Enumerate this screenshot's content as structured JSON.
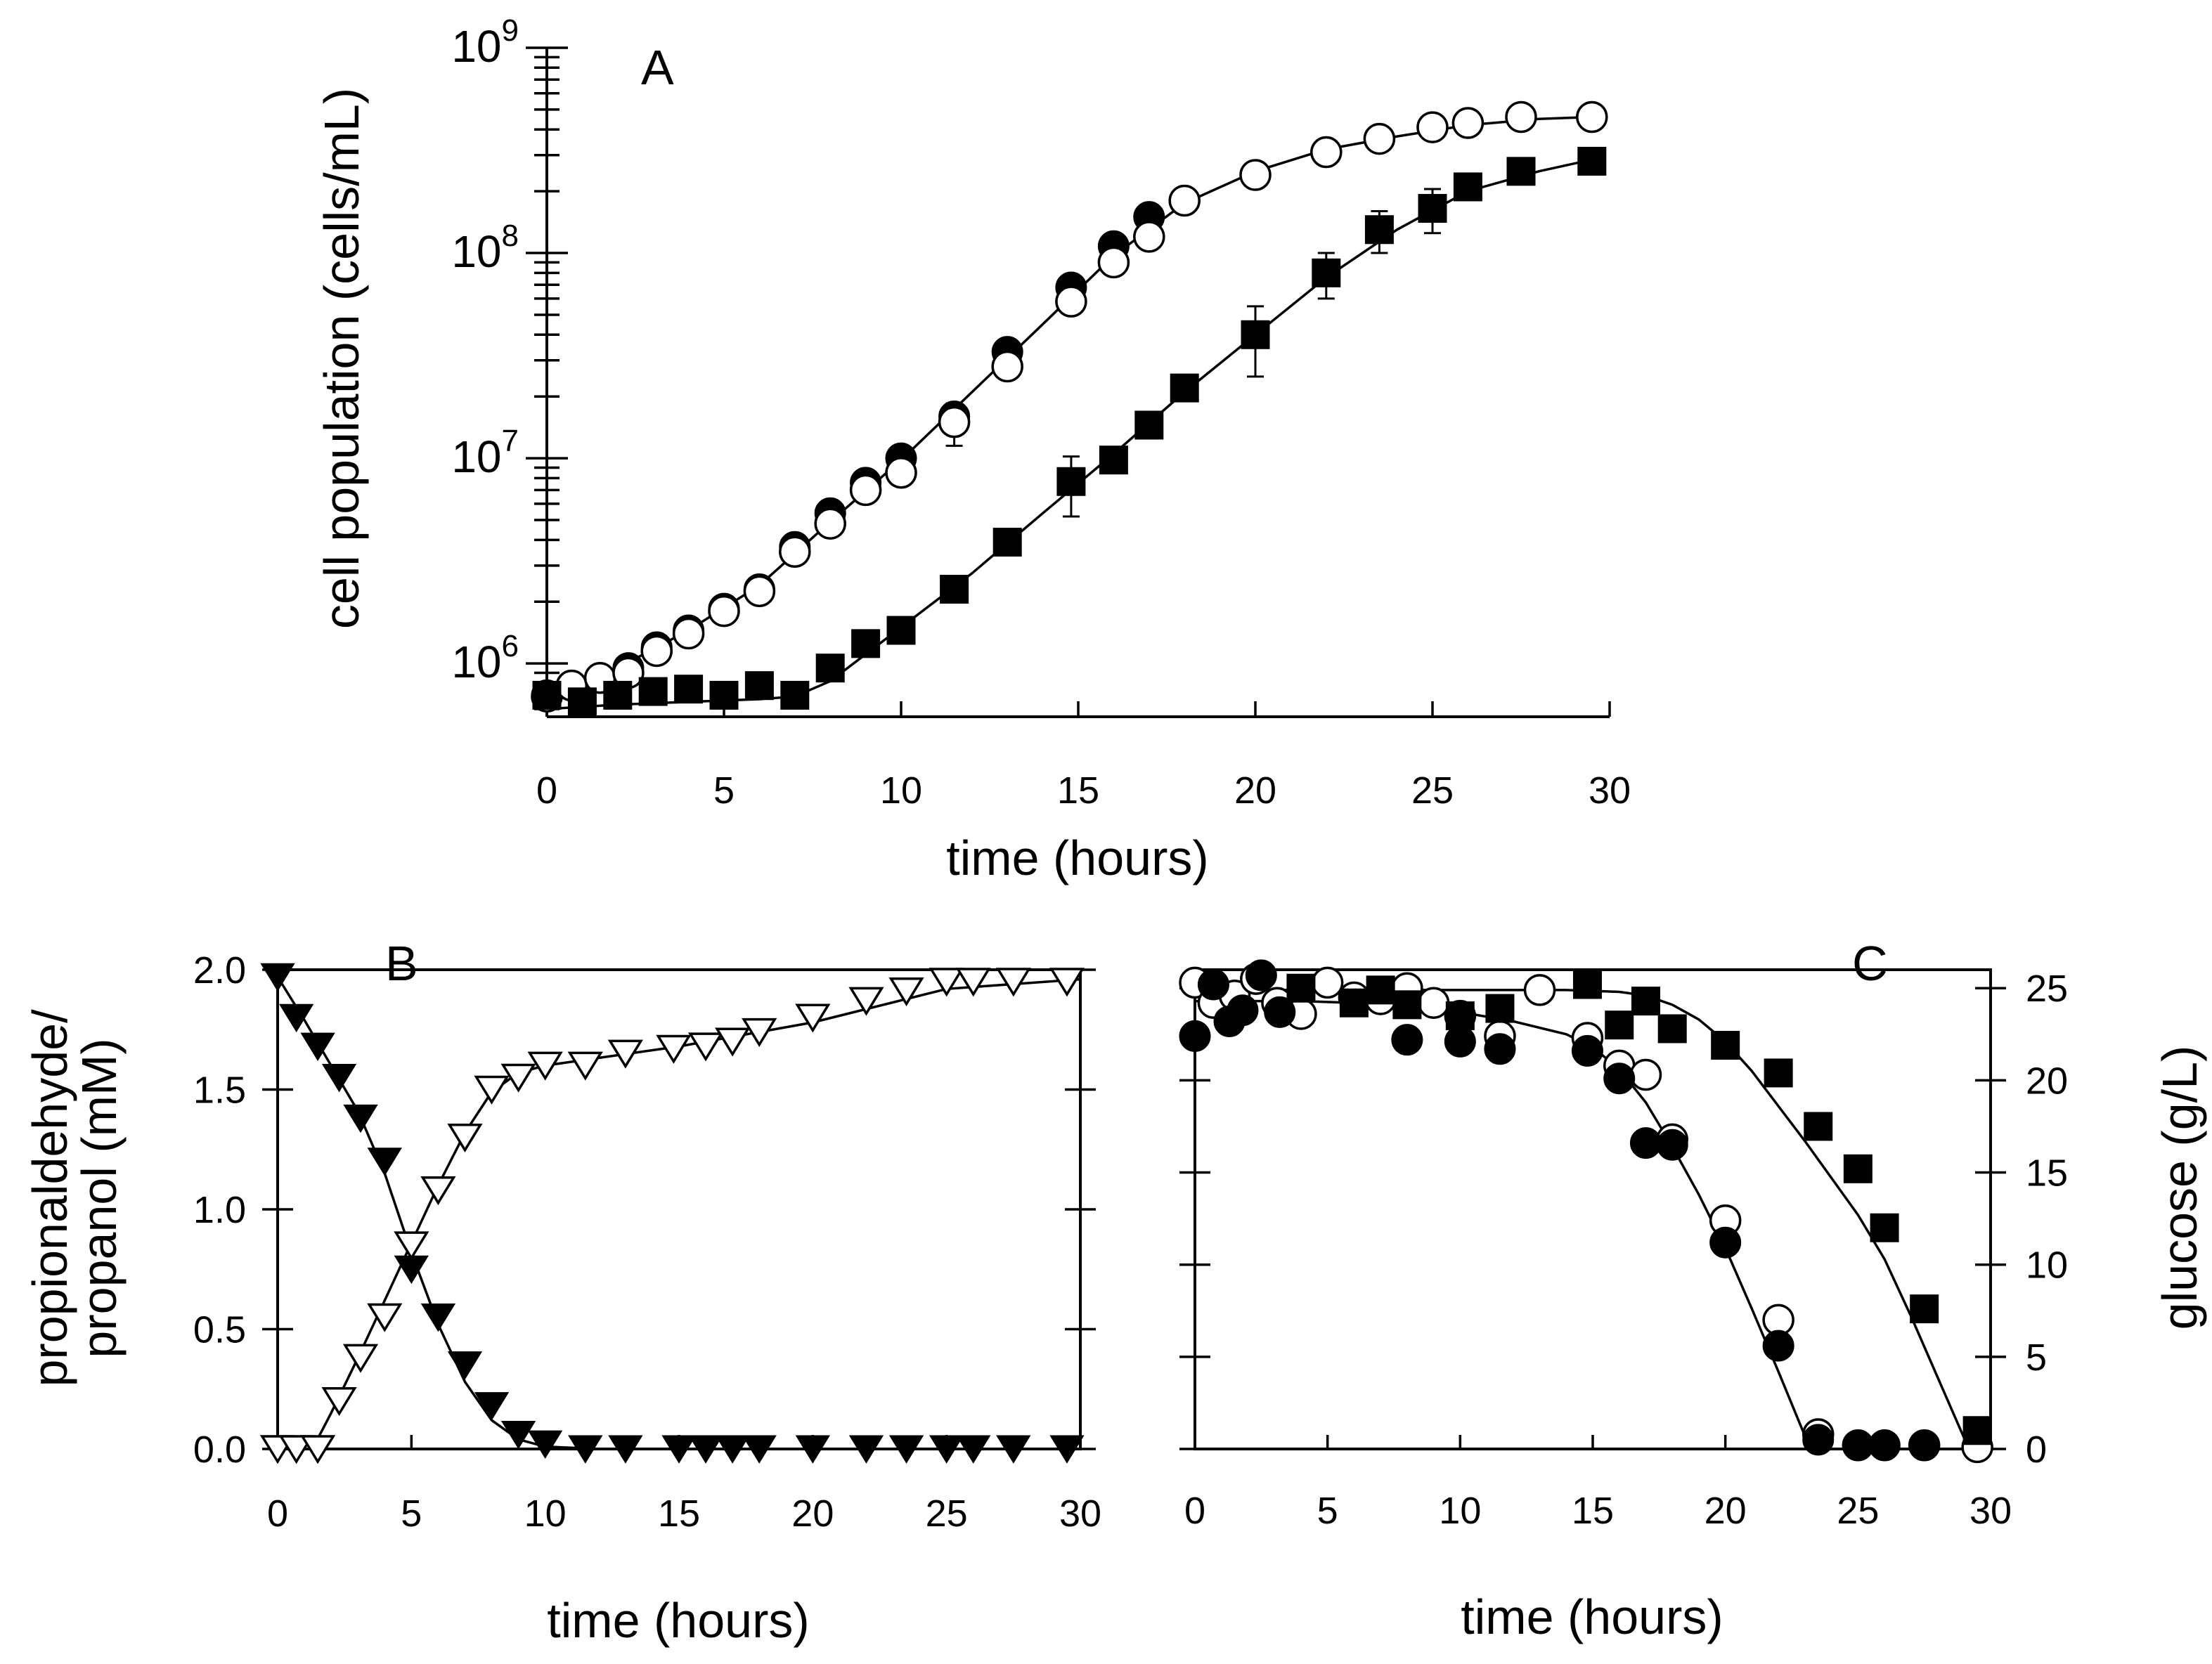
{
  "chart_data": [
    {
      "panel": "A",
      "type": "scatter",
      "title": "A",
      "xlabel": "time (hours)",
      "ylabel": "cell population (cells/mL)",
      "yscale": "log",
      "xlim": [
        0,
        30
      ],
      "ylim": [
        550000,
        1000000000
      ],
      "xticks": [
        0,
        5,
        10,
        15,
        20,
        25,
        30
      ],
      "yticks": [
        {
          "value": 1000000,
          "base": "10",
          "exp": "6"
        },
        {
          "value": 10000000,
          "base": "10",
          "exp": "7"
        },
        {
          "value": 100000000,
          "base": "10",
          "exp": "8"
        },
        {
          "value": 1000000000,
          "base": "10",
          "exp": "9"
        }
      ],
      "series": [
        {
          "name": "filled circles",
          "marker": "circle",
          "filled": true,
          "x": [
            0,
            0.7,
            1.5,
            2.3,
            3.1,
            4,
            5,
            6,
            7,
            8,
            9,
            10,
            11.5,
            13,
            14.8,
            16,
            17,
            18,
            20,
            22,
            23.5,
            25,
            26,
            27.5,
            29.5
          ],
          "y": [
            700000,
            780000,
            850000,
            950000,
            1200000,
            1450000,
            1850000,
            2300000,
            3700000,
            5400000,
            7600000,
            10000000,
            16000000,
            33000000,
            68000000,
            108000000,
            150000000,
            180000000,
            240000000,
            310000000,
            360000000,
            410000000,
            430000000,
            460000000,
            460000000
          ]
        },
        {
          "name": "open circles",
          "marker": "circle",
          "filled": false,
          "x": [
            0,
            0.7,
            1.5,
            2.3,
            3.1,
            4,
            5,
            6,
            7,
            8,
            9,
            10,
            11.5,
            13,
            14.8,
            16,
            17,
            18,
            20,
            22,
            23.5,
            25,
            26,
            27.5,
            29.5
          ],
          "y": [
            690000,
            780000,
            850000,
            900000,
            1150000,
            1400000,
            1800000,
            2250000,
            3500000,
            4800000,
            7000000,
            8500000,
            15000000,
            28000000,
            58000000,
            90000000,
            120000000,
            180000000,
            240000000,
            310000000,
            360000000,
            410000000,
            430000000,
            460000000,
            460000000
          ],
          "err": [
            0,
            0,
            0,
            0,
            0,
            0,
            0,
            0,
            0,
            0,
            0,
            0,
            3500000,
            0,
            0,
            0,
            0,
            0,
            0,
            0,
            0,
            0,
            0,
            0,
            0
          ]
        },
        {
          "name": "filled squares",
          "marker": "square",
          "filled": true,
          "x": [
            0,
            1,
            2,
            3,
            4,
            5,
            6,
            7,
            8,
            9,
            10,
            11.5,
            13,
            14.8,
            16,
            17,
            18,
            20,
            22,
            23.5,
            25,
            26,
            27.5,
            29.5
          ],
          "y": [
            700000,
            650000,
            700000,
            730000,
            750000,
            700000,
            780000,
            700000,
            950000,
            1250000,
            1450000,
            2300000,
            3900000,
            7700000,
            9800000,
            14500000,
            22000000,
            40000000,
            80000000,
            130000000,
            165000000,
            210000000,
            250000000,
            280000000
          ],
          "err": [
            0,
            0,
            0,
            0,
            0,
            0,
            0,
            0,
            0,
            0,
            0,
            0,
            0,
            2500000,
            0,
            0,
            0,
            15000000,
            20000000,
            30000000,
            40000000,
            0,
            0,
            0
          ]
        }
      ],
      "fit_curves": [
        {
          "name": "fit circles",
          "x": [
            0,
            2,
            4,
            6,
            8,
            10,
            12,
            14,
            16,
            18,
            20,
            22,
            24,
            26,
            28,
            29.5
          ],
          "y": [
            650000,
            950000,
            1450000,
            2400000,
            4900000,
            9800000,
            21000000,
            45000000,
            97000000,
            175000000,
            250000000,
            320000000,
            370000000,
            420000000,
            450000000,
            460000000
          ]
        },
        {
          "name": "fit squares",
          "x": [
            0,
            2,
            4,
            6,
            7,
            8,
            10,
            12,
            14,
            16,
            18,
            20,
            22,
            24,
            26,
            28,
            29.5
          ],
          "y": [
            600000,
            630000,
            650000,
            670000,
            690000,
            820000,
            1500000,
            2750000,
            5400000,
            10500000,
            21000000,
            40000000,
            76000000,
            130000000,
            200000000,
            250000000,
            285000000
          ]
        }
      ]
    },
    {
      "panel": "B",
      "type": "scatter",
      "title": "B",
      "xlabel": "time (hours)",
      "ylabel_lines": [
        "propionaldehyde/",
        "propanol (mM)"
      ],
      "xlim": [
        0,
        30
      ],
      "ylim": [
        0,
        2
      ],
      "xticks": [
        0,
        5,
        10,
        15,
        20,
        25,
        30
      ],
      "yticks": [
        0,
        0.5,
        1,
        1.5,
        2
      ],
      "ytick_labels": [
        "0.0",
        "0.5",
        "1.0",
        "1.5",
        "2.0"
      ],
      "series": [
        {
          "name": "filled triangles",
          "marker": "triangle-down",
          "filled": true,
          "x": [
            0,
            0.7,
            1.5,
            2.3,
            3.1,
            4,
            5,
            6,
            7,
            8,
            9,
            10,
            11.5,
            13,
            15,
            16,
            17,
            18,
            20,
            22,
            23.5,
            25,
            26,
            27.5,
            29.5
          ],
          "y": [
            1.97,
            1.8,
            1.68,
            1.55,
            1.38,
            1.2,
            0.75,
            0.55,
            0.35,
            0.18,
            0.06,
            0.02,
            0,
            0,
            0,
            0,
            0,
            0,
            0,
            0,
            0,
            0,
            0,
            0,
            0
          ]
        },
        {
          "name": "open triangles",
          "marker": "triangle-down",
          "filled": false,
          "x": [
            0,
            0.7,
            1.5,
            2.3,
            3.1,
            4,
            5,
            6,
            7,
            8,
            9,
            10,
            11.5,
            13,
            14.8,
            16,
            17,
            18,
            20,
            22,
            23.5,
            25,
            26,
            27.5,
            29.5
          ],
          "y": [
            0,
            0,
            0,
            0.2,
            0.38,
            0.55,
            0.85,
            1.08,
            1.3,
            1.5,
            1.55,
            1.6,
            1.6,
            1.65,
            1.67,
            1.68,
            1.7,
            1.74,
            1.8,
            1.87,
            1.91,
            1.95,
            1.95,
            1.95,
            1.95
          ]
        }
      ],
      "fit_curves": [
        {
          "name": "fit filled",
          "x": [
            0,
            1,
            2,
            3,
            4,
            5,
            6,
            7,
            8,
            9,
            10,
            12,
            30
          ],
          "y": [
            1.97,
            1.79,
            1.6,
            1.41,
            1.15,
            0.82,
            0.52,
            0.28,
            0.12,
            0.04,
            0.01,
            0,
            0
          ]
        },
        {
          "name": "fit open",
          "x": [
            1.3,
            2,
            3,
            4,
            5,
            6,
            7,
            8,
            9,
            10,
            15,
            20,
            25,
            30
          ],
          "y": [
            0,
            0.15,
            0.38,
            0.62,
            0.86,
            1.1,
            1.32,
            1.49,
            1.57,
            1.6,
            1.68,
            1.78,
            1.92,
            1.96
          ]
        }
      ]
    },
    {
      "panel": "C",
      "type": "scatter",
      "title": "C",
      "xlabel": "time (hours)",
      "ylabel_right": "glucose (g/L)",
      "xlim": [
        0,
        30
      ],
      "ylim": [
        0,
        26
      ],
      "xticks": [
        0,
        5,
        10,
        15,
        20,
        25,
        30
      ],
      "yticks": [
        0,
        5,
        10,
        15,
        20,
        25
      ],
      "series": [
        {
          "name": "open circles",
          "marker": "circle",
          "filled": false,
          "x": [
            0,
            0.7,
            1.5,
            2.3,
            3.1,
            4,
            5,
            6,
            7,
            8,
            9,
            10,
            11.5,
            13,
            14.8,
            16,
            17,
            18,
            20,
            22,
            23.5,
            25,
            26,
            27.5,
            29.5
          ],
          "y": [
            25.3,
            24.2,
            24.6,
            25.5,
            24.2,
            23.6,
            25.3,
            24.5,
            24.4,
            25,
            24.2,
            23.5,
            22.4,
            24.9,
            22.3,
            20.8,
            20.3,
            16.8,
            12.4,
            7,
            0.8,
            0.2,
            0.2,
            0.2,
            0.1
          ]
        },
        {
          "name": "filled circles",
          "marker": "circle",
          "filled": true,
          "x": [
            0,
            0.7,
            1.3,
            1.8,
            2.5,
            3.2,
            8,
            10,
            11.5,
            14.8,
            16,
            17,
            18,
            20,
            22,
            23.5,
            25,
            26,
            27.5
          ],
          "y": [
            22.4,
            25.2,
            23.2,
            23.8,
            25.7,
            23.7,
            22.2,
            22.1,
            21.7,
            21.6,
            20.1,
            16.6,
            16.5,
            11.2,
            5.6,
            0.5,
            0.2,
            0.2,
            0.2
          ]
        },
        {
          "name": "filled squares",
          "marker": "square",
          "filled": true,
          "x": [
            4,
            6,
            7,
            8,
            10,
            11.5,
            14.8,
            16,
            17,
            18,
            20,
            22,
            23.5,
            25,
            26,
            27.5,
            29.5
          ],
          "y": [
            25,
            24.2,
            24.9,
            24.1,
            23.5,
            23.9,
            25.2,
            23,
            24.3,
            22.8,
            21.9,
            20.4,
            17.5,
            15.2,
            12,
            7.6,
            1
          ]
        }
      ],
      "fit_curves": [
        {
          "name": "fit circles",
          "x": [
            0,
            4,
            8,
            10,
            12,
            14,
            15,
            16,
            17,
            18,
            19,
            20,
            21,
            22,
            22.6,
            23,
            23.5,
            30
          ],
          "y": [
            24.3,
            24.3,
            24.1,
            23.7,
            23.2,
            22.5,
            21.8,
            20.6,
            18.8,
            16.4,
            13.8,
            10.9,
            7.6,
            4.2,
            2.1,
            0.7,
            0,
            0
          ]
        },
        {
          "name": "fit squares",
          "x": [
            0,
            5,
            10,
            14,
            16,
            17,
            18,
            19,
            20,
            21,
            22,
            23,
            24,
            25,
            26,
            27,
            28,
            29
          ],
          "y": [
            24.9,
            24.9,
            24.9,
            24.9,
            24.8,
            24.6,
            24.1,
            23.3,
            22.1,
            20.5,
            18.6,
            16.7,
            14.7,
            12.7,
            10.3,
            7.2,
            3.9,
            0.6
          ]
        }
      ]
    }
  ]
}
